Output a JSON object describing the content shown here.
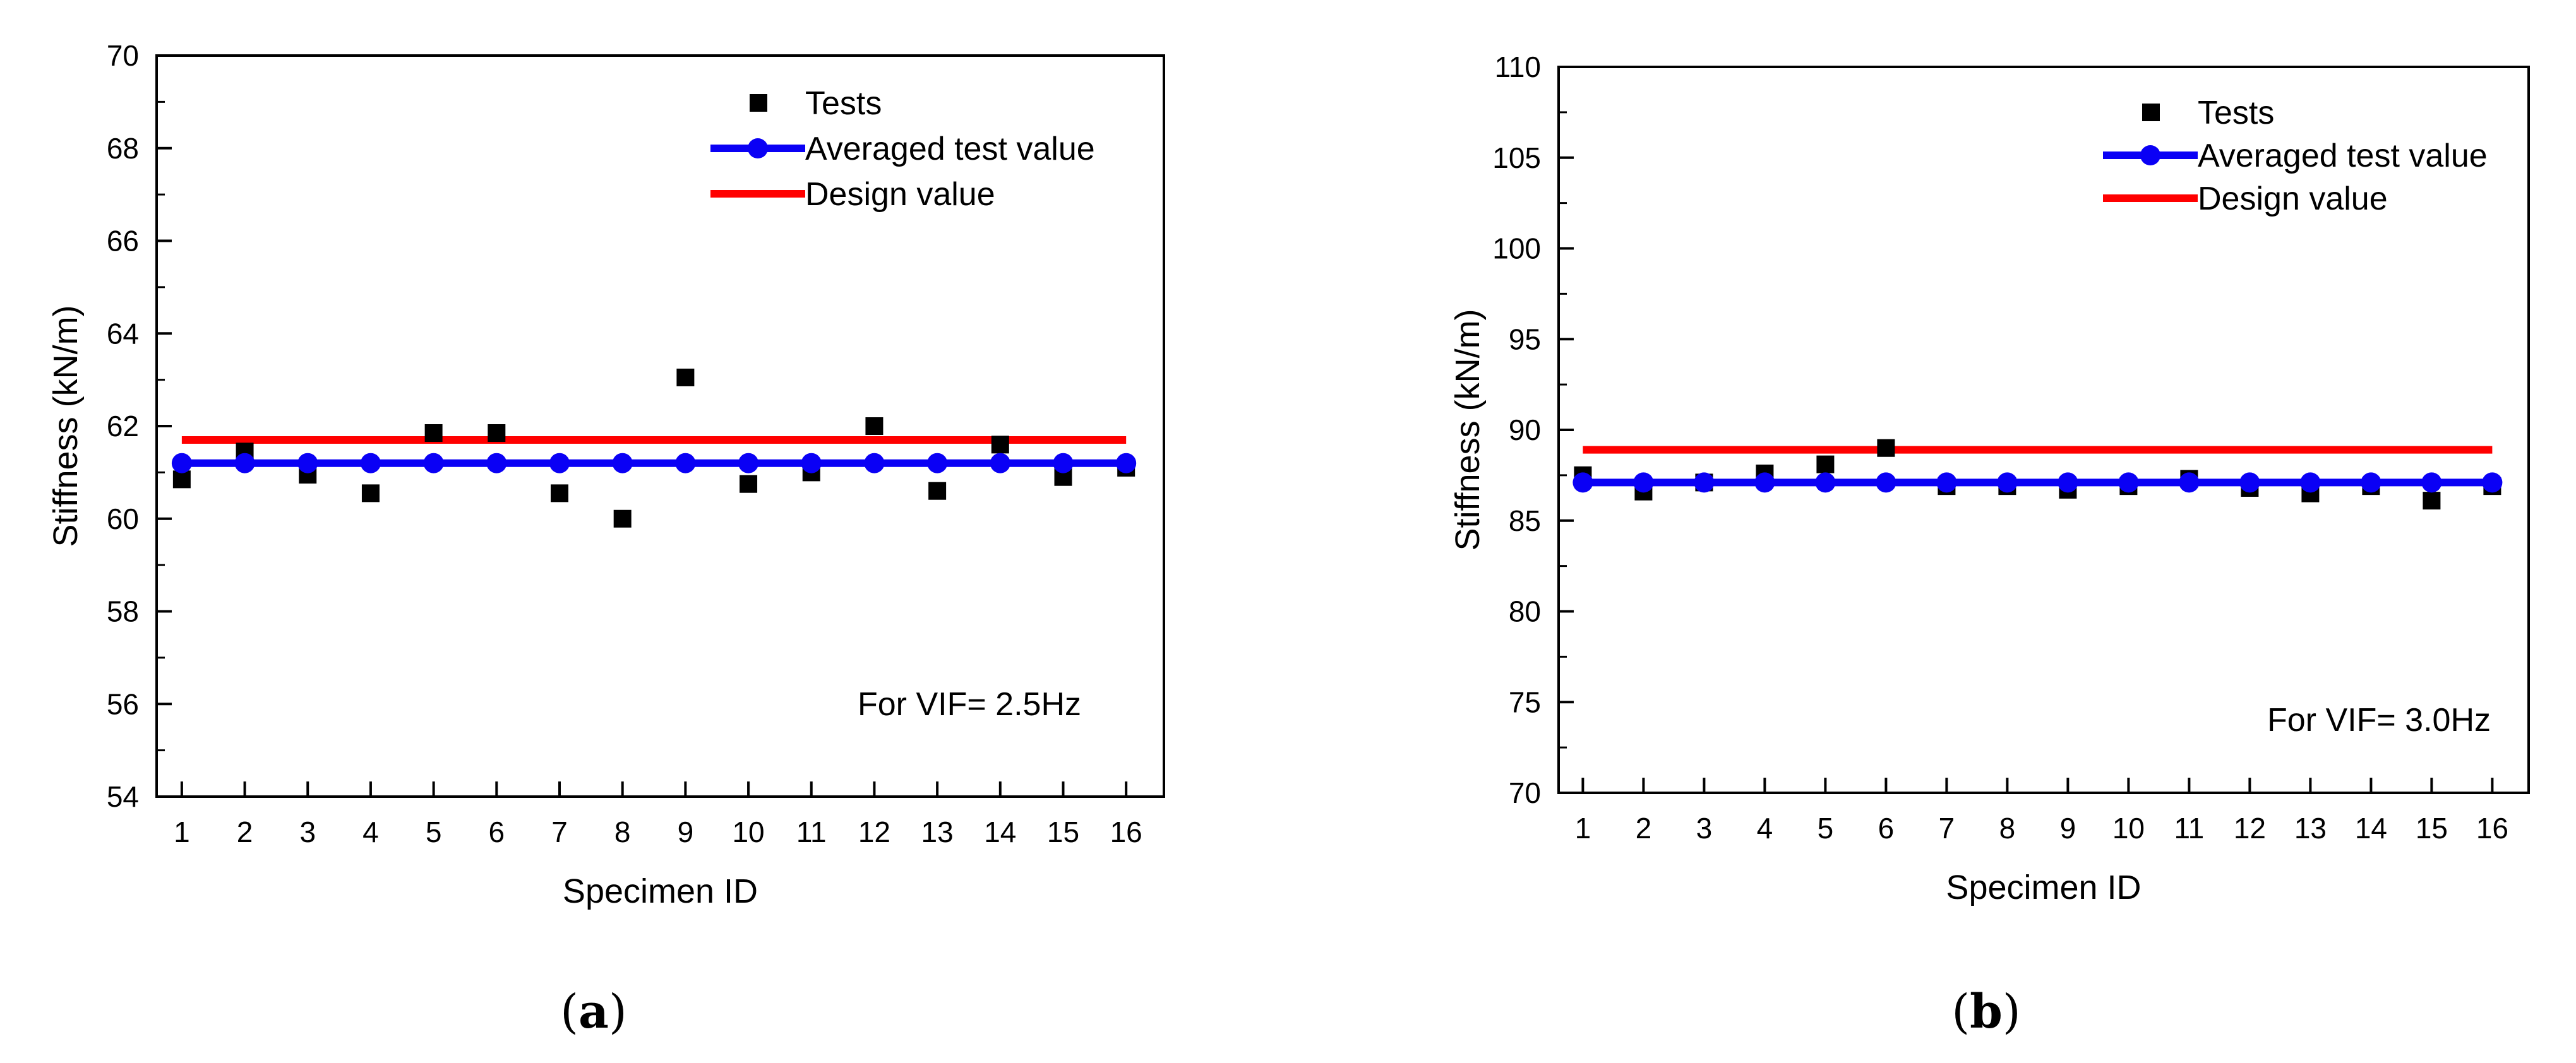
{
  "figure": {
    "caption_a": {
      "open": "(",
      "letter": "a",
      "close": ")"
    },
    "caption_b": {
      "open": "(",
      "letter": "b",
      "close": ")"
    }
  },
  "colors": {
    "tests": "#000000",
    "average": "#0a00f5",
    "design": "#ff0000"
  },
  "chart_data": [
    {
      "type": "scatter",
      "id": "a",
      "xlabel": "Specimen ID",
      "ylabel": "Stiffness (kN/m)",
      "x": [
        1,
        2,
        3,
        4,
        5,
        6,
        7,
        8,
        9,
        10,
        11,
        12,
        13,
        14,
        15,
        16
      ],
      "xticks": [
        1,
        2,
        3,
        4,
        5,
        6,
        7,
        8,
        9,
        10,
        11,
        12,
        13,
        14,
        15,
        16
      ],
      "xlim": [
        0.6,
        16.6
      ],
      "ylim": [
        54,
        70
      ],
      "yticks": [
        54,
        56,
        58,
        60,
        62,
        64,
        66,
        68,
        70
      ],
      "series": [
        {
          "name": "Tests",
          "style": "square",
          "values": [
            60.85,
            61.45,
            60.95,
            60.55,
            61.85,
            61.85,
            60.55,
            60.0,
            63.05,
            60.75,
            61.0,
            62.0,
            60.6,
            61.6,
            60.9,
            61.1
          ]
        },
        {
          "name": "Averaged test value",
          "style": "line-circle",
          "values": [
            61.2,
            61.2,
            61.2,
            61.2,
            61.2,
            61.2,
            61.2,
            61.2,
            61.2,
            61.2,
            61.2,
            61.2,
            61.2,
            61.2,
            61.2,
            61.2
          ]
        },
        {
          "name": "Design value",
          "style": "line",
          "values": [
            61.7,
            61.7,
            61.7,
            61.7,
            61.7,
            61.7,
            61.7,
            61.7,
            61.7,
            61.7,
            61.7,
            61.7,
            61.7,
            61.7,
            61.7,
            61.7
          ]
        }
      ],
      "legend": [
        "Tests",
        "Averaged test value",
        "Design value"
      ],
      "legend_placement": "top-right",
      "annotation": "For VIF= 2.5Hz"
    },
    {
      "type": "scatter",
      "id": "b",
      "xlabel": "Specimen ID",
      "ylabel": "Stiffness (kN/m)",
      "x": [
        1,
        2,
        3,
        4,
        5,
        6,
        7,
        8,
        9,
        10,
        11,
        12,
        13,
        14,
        15,
        16
      ],
      "xticks": [
        1,
        2,
        3,
        4,
        5,
        6,
        7,
        8,
        9,
        10,
        11,
        12,
        13,
        14,
        15,
        16
      ],
      "xlim": [
        0.6,
        16.6
      ],
      "ylim": [
        70,
        110
      ],
      "yticks": [
        70,
        75,
        80,
        85,
        90,
        95,
        100,
        105,
        110
      ],
      "series": [
        {
          "name": "Tests",
          "style": "square",
          "values": [
            87.5,
            86.6,
            87.1,
            87.6,
            88.1,
            89.0,
            86.9,
            86.9,
            86.7,
            86.9,
            87.3,
            86.8,
            86.5,
            86.9,
            86.1,
            86.9
          ]
        },
        {
          "name": "Averaged test value",
          "style": "line-circle",
          "values": [
            87.1,
            87.1,
            87.1,
            87.1,
            87.1,
            87.1,
            87.1,
            87.1,
            87.1,
            87.1,
            87.1,
            87.1,
            87.1,
            87.1,
            87.1,
            87.1
          ]
        },
        {
          "name": "Design value",
          "style": "line",
          "values": [
            88.9,
            88.9,
            88.9,
            88.9,
            88.9,
            88.9,
            88.9,
            88.9,
            88.9,
            88.9,
            88.9,
            88.9,
            88.9,
            88.9,
            88.9,
            88.9
          ]
        }
      ],
      "legend": [
        "Tests",
        "Averaged test value",
        "Design value"
      ],
      "legend_placement": "top-right",
      "annotation": "For VIF= 3.0Hz"
    }
  ]
}
